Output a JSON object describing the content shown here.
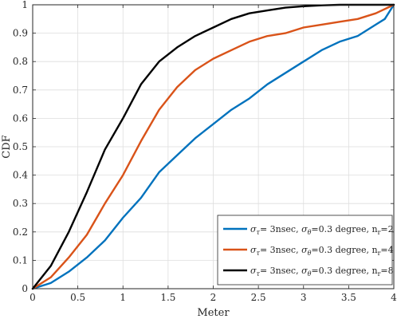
{
  "chart_data": {
    "type": "line",
    "title": "",
    "xlabel": "Meter",
    "ylabel": "CDF",
    "xlim": [
      0,
      4
    ],
    "ylim": [
      0,
      1
    ],
    "grid": true,
    "legend_position": "bottom-right",
    "x_ticks": [
      "0",
      "0.5",
      "1",
      "1.5",
      "2",
      "2.5",
      "3",
      "3.5",
      "4"
    ],
    "y_ticks": [
      "0",
      "0.1",
      "0.2",
      "0.3",
      "0.4",
      "0.5",
      "0.6",
      "0.7",
      "0.8",
      "0.9",
      "1"
    ],
    "legend_labels": [
      "σ_τ= 3nsec, σ_θ=0.3 degree, n_r=2",
      "σ_τ= 3nsec, σ_θ=0.3 degree, n_r=4",
      "σ_τ= 3nsec, σ_θ=0.3 degree, n_r=8"
    ],
    "series": [
      {
        "color": "#0072BD",
        "x": [
          0,
          0.2,
          0.4,
          0.6,
          0.8,
          1.0,
          1.2,
          1.4,
          1.6,
          1.8,
          2.0,
          2.2,
          2.4,
          2.6,
          2.8,
          3.0,
          3.2,
          3.4,
          3.6,
          3.8,
          3.9,
          4.0
        ],
        "y": [
          0,
          0.02,
          0.06,
          0.11,
          0.17,
          0.25,
          0.32,
          0.41,
          0.47,
          0.53,
          0.58,
          0.63,
          0.67,
          0.72,
          0.76,
          0.8,
          0.84,
          0.87,
          0.89,
          0.93,
          0.95,
          1.0
        ]
      },
      {
        "color": "#D95319",
        "x": [
          0,
          0.2,
          0.4,
          0.6,
          0.8,
          1.0,
          1.2,
          1.4,
          1.6,
          1.8,
          2.0,
          2.2,
          2.4,
          2.6,
          2.8,
          3.0,
          3.2,
          3.4,
          3.6,
          3.8,
          4.0
        ],
        "y": [
          0,
          0.04,
          0.11,
          0.19,
          0.3,
          0.4,
          0.52,
          0.63,
          0.71,
          0.77,
          0.81,
          0.84,
          0.87,
          0.89,
          0.9,
          0.92,
          0.93,
          0.94,
          0.95,
          0.97,
          1.0
        ]
      },
      {
        "color": "#000000",
        "x": [
          0,
          0.2,
          0.4,
          0.6,
          0.8,
          1.0,
          1.2,
          1.4,
          1.6,
          1.8,
          2.0,
          2.2,
          2.4,
          2.6,
          2.8,
          3.0,
          3.2,
          3.4,
          3.6,
          3.8,
          4.0
        ],
        "y": [
          0,
          0.08,
          0.2,
          0.34,
          0.49,
          0.6,
          0.72,
          0.8,
          0.85,
          0.89,
          0.92,
          0.95,
          0.97,
          0.98,
          0.99,
          0.995,
          0.998,
          1.0,
          1.0,
          1.0,
          1.0
        ]
      }
    ]
  }
}
